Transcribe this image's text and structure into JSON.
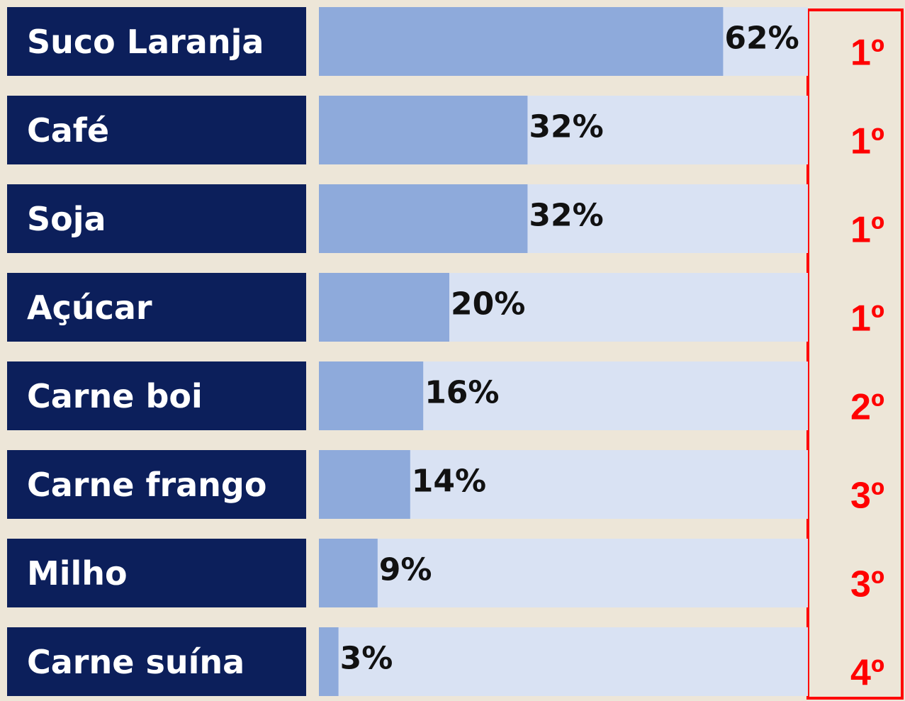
{
  "chart_data": {
    "type": "bar",
    "orientation": "horizontal",
    "categories": [
      "Suco Laranja",
      "Café",
      "Soja",
      "Açúcar",
      "Carne boi",
      "Carne frango",
      "Milho",
      "Carne suína"
    ],
    "values": [
      62,
      32,
      32,
      20,
      16,
      14,
      9,
      3
    ],
    "value_labels": [
      "62%",
      "32%",
      "32%",
      "20%",
      "16%",
      "14%",
      "9%",
      "3%"
    ],
    "ranks": [
      "1º",
      "1º",
      "1º",
      "1º",
      "2º",
      "3º",
      "3º",
      "4º"
    ],
    "color": "#8eaadb",
    "xlim": [
      0,
      75
    ]
  }
}
